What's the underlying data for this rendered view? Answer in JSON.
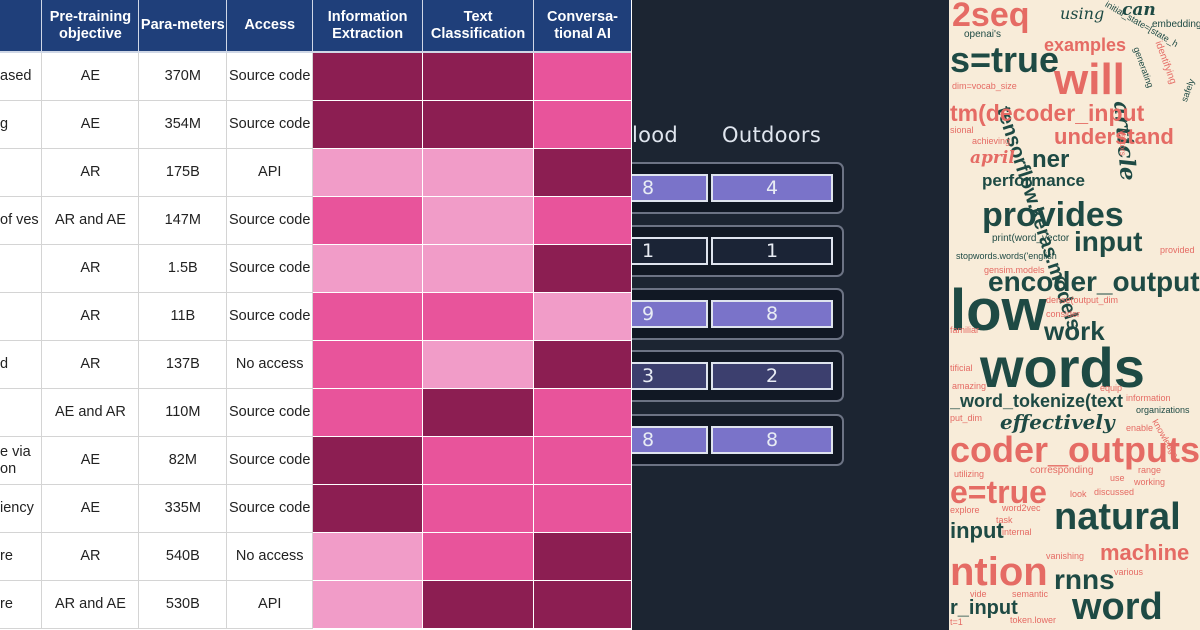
{
  "table": {
    "headers": [
      "",
      "Pre-training objective",
      "Para-meters",
      "Access",
      "Information Extraction",
      "Text Classification",
      "Conversa-tional AI"
    ],
    "rows": [
      {
        "name": "ased",
        "objective": "AE",
        "params": "370M",
        "access": "Source code",
        "heat": [
          "dark",
          "dark",
          "mid"
        ]
      },
      {
        "name": "g",
        "objective": "AE",
        "params": "354M",
        "access": "Source code",
        "heat": [
          "dark",
          "dark",
          "mid"
        ]
      },
      {
        "name": "",
        "objective": "AR",
        "params": "175B",
        "access": "API",
        "heat": [
          "light",
          "light",
          "dark"
        ]
      },
      {
        "name": "of ves",
        "objective": "AR and AE",
        "params": "147M",
        "access": "Source code",
        "heat": [
          "mid",
          "light",
          "mid"
        ]
      },
      {
        "name": "",
        "objective": "AR",
        "params": "1.5B",
        "access": "Source code",
        "heat": [
          "light",
          "light",
          "dark"
        ]
      },
      {
        "name": "",
        "objective": "AR",
        "params": "11B",
        "access": "Source code",
        "heat": [
          "mid",
          "mid",
          "light"
        ]
      },
      {
        "name": "d",
        "objective": "AR",
        "params": "137B",
        "access": "No access",
        "heat": [
          "mid",
          "light",
          "dark"
        ]
      },
      {
        "name": "",
        "objective": "AE and AR",
        "params": "110M",
        "access": "Source code",
        "heat": [
          "mid",
          "dark",
          "mid"
        ]
      },
      {
        "name": "e via on",
        "objective": "AE",
        "params": "82M",
        "access": "Source code",
        "heat": [
          "dark",
          "mid",
          "mid"
        ]
      },
      {
        "name": "iency",
        "objective": "AE",
        "params": "335M",
        "access": "Source code",
        "heat": [
          "dark",
          "mid",
          "mid"
        ]
      },
      {
        "name": "re",
        "objective": "AR",
        "params": "540B",
        "access": "No access",
        "heat": [
          "light",
          "mid",
          "dark"
        ]
      },
      {
        "name": "re",
        "objective": "AR and AE",
        "params": "530B",
        "access": "API",
        "heat": [
          "light",
          "dark",
          "dark"
        ]
      }
    ],
    "heat_colors": {
      "dark": "#8c1e52",
      "mid": "#e8549b",
      "light": "#f19cc8"
    },
    "header_color": "#1f3f7a"
  },
  "scoreboard": {
    "headers": [
      "lood",
      "Outdoors"
    ],
    "rows": [
      {
        "left": "8",
        "right": "4",
        "style": "bright"
      },
      {
        "left": "1",
        "right": "1",
        "style": "dark"
      },
      {
        "left": "9",
        "right": "8",
        "style": "bright"
      },
      {
        "left": "3",
        "right": "2",
        "style": "dim"
      },
      {
        "left": "8",
        "right": "8",
        "style": "bright"
      }
    ]
  },
  "wordcloud": {
    "words": [
      "2seq",
      "using",
      "initial_state=[state_h",
      "can",
      "embedding",
      "openai's",
      "s=true",
      "examples",
      "will",
      "identifying",
      "dim=vocab_size",
      "generating",
      "safely",
      "tensorflow.keras.models",
      "article",
      "tm(decoder_input",
      "sional",
      "achieving",
      "understand",
      "april",
      "ner",
      "vectors",
      "performance",
      "provides",
      "print(word_vector",
      "input",
      "stopwords.words('english",
      "provided",
      "gensim.models",
      "encoder_outputs",
      "low",
      "dense(output_dim",
      "consider",
      "work",
      "familiar",
      "tificial",
      "words",
      "amazing",
      "equip",
      "_word_tokenize(text",
      "information",
      "put_dim",
      "organizations",
      "effectively",
      "knowledge",
      "enable",
      "coder_outputs",
      "utilizing",
      "corresponding",
      "range",
      "e=true",
      "use",
      "working",
      "discussed",
      "explore",
      "look",
      "word2vec",
      "natural",
      "task",
      "internal",
      "input",
      "machine",
      "vanishing",
      "various",
      "ntion",
      "rnns",
      "vide",
      "semantic",
      "r_input",
      "word",
      "token.lower",
      "t=1"
    ]
  }
}
